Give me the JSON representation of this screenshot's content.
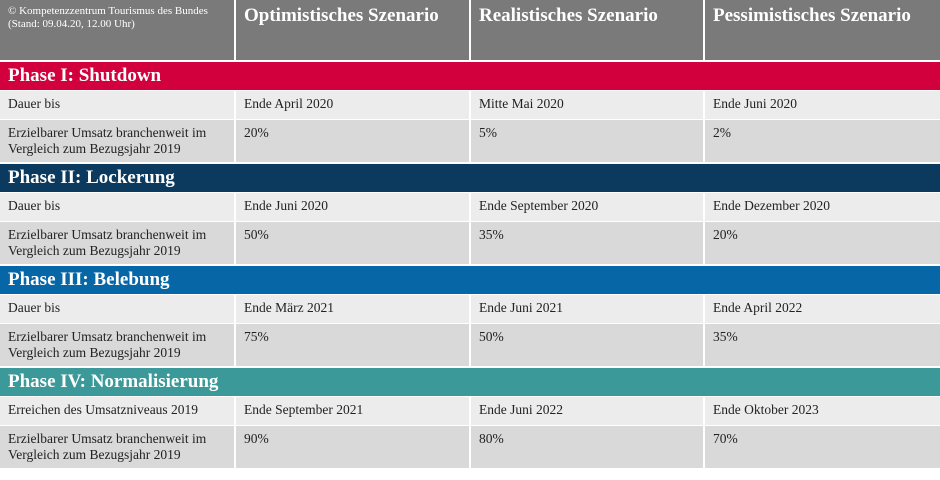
{
  "header": {
    "note": "© Kompetenzzentrum Tourismus des Bundes (Stand: 09.04.20, 12.00 Uhr)",
    "columns": [
      "Optimistisches Szenario",
      "Realistisches Szenario",
      "Pessimistisches Szenario"
    ]
  },
  "phases": [
    {
      "title": "Phase I: Shutdown",
      "color": "#d2003c",
      "rows": [
        {
          "label": "Dauer bis",
          "values": [
            "Ende April 2020",
            "Mitte Mai 2020",
            "Ende Juni 2020"
          ]
        },
        {
          "label": "Erzielbarer Umsatz branchenweit im Vergleich zum Bezugsjahr 2019",
          "values": [
            "20%",
            "5%",
            "2%"
          ]
        }
      ]
    },
    {
      "title": "Phase II: Lockerung",
      "color": "#0c3a5f",
      "rows": [
        {
          "label": "Dauer bis",
          "values": [
            "Ende Juni 2020",
            "Ende September 2020",
            "Ende Dezember 2020"
          ]
        },
        {
          "label": "Erzielbarer Umsatz branchenweit im Vergleich zum Bezugsjahr 2019",
          "values": [
            "50%",
            "35%",
            "20%"
          ]
        }
      ]
    },
    {
      "title": "Phase III: Belebung",
      "color": "#0767a6",
      "rows": [
        {
          "label": "Dauer bis",
          "values": [
            "Ende März 2021",
            "Ende Juni 2021",
            "Ende April 2022"
          ]
        },
        {
          "label": "Erzielbarer Umsatz branchenweit im Vergleich zum Bezugsjahr 2019",
          "values": [
            "75%",
            "50%",
            "35%"
          ]
        }
      ]
    },
    {
      "title": "Phase IV: Normalisierung",
      "color": "#3b9999",
      "rows": [
        {
          "label": "Erreichen des Umsatzniveaus 2019",
          "values": [
            "Ende September 2021",
            "Ende Juni 2022",
            "Ende Oktober 2023"
          ]
        },
        {
          "label": "Erzielbarer Umsatz branchenweit im Vergleich zum Bezugsjahr 2019",
          "values": [
            "90%",
            "80%",
            "70%"
          ]
        }
      ]
    }
  ]
}
